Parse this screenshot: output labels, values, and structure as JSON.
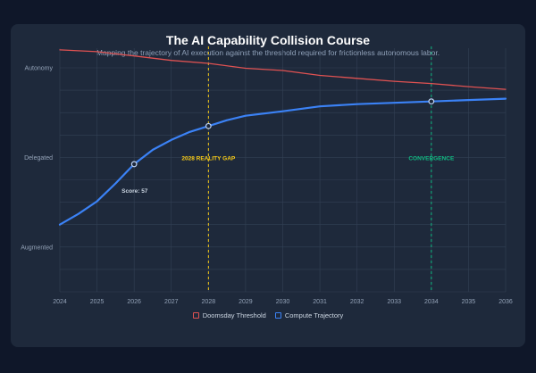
{
  "header": {
    "title": "The AI Capability Collision Course",
    "subtitle": "Mapping the trajectory of AI execution against the threshold required for frictionless autonomous labor."
  },
  "chart_data": {
    "type": "line",
    "title": "The AI Capability Collision Course",
    "subtitle": "Mapping the trajectory of AI execution against the threshold required for frictionless autonomous labor.",
    "xlabel": "",
    "ylabel": "",
    "x": [
      2024,
      2025,
      2026,
      2027,
      2028,
      2029,
      2030,
      2031,
      2032,
      2033,
      2034,
      2035,
      2036
    ],
    "xlim": [
      2024,
      2036
    ],
    "ylim": [
      0,
      100
    ],
    "y_tick_labels": [
      {
        "value": 20,
        "label": "Augmented"
      },
      {
        "value": 60,
        "label": "Delegated"
      },
      {
        "value": 100,
        "label": "Autonomy"
      }
    ],
    "grid": true,
    "series": [
      {
        "name": "Doomsday Threshold",
        "color": "#e05252",
        "points": [
          [
            2024,
            108
          ],
          [
            2025,
            107.2
          ],
          [
            2026,
            105.3
          ],
          [
            2027,
            103.3
          ],
          [
            2028,
            102
          ],
          [
            2029,
            99.8
          ],
          [
            2030,
            98.8
          ],
          [
            2031,
            96.6
          ],
          [
            2032,
            95.3
          ],
          [
            2033,
            94
          ],
          [
            2034,
            93
          ],
          [
            2035,
            91.6
          ],
          [
            2036,
            90.4
          ]
        ]
      },
      {
        "name": "Compute Trajectory",
        "color": "#3b82f6",
        "points": [
          [
            2024,
            30
          ],
          [
            2024.5,
            34.8
          ],
          [
            2025,
            40.4
          ],
          [
            2025.5,
            48.4
          ],
          [
            2026,
            57
          ],
          [
            2026.5,
            63.4
          ],
          [
            2027,
            67.8
          ],
          [
            2027.5,
            71.4
          ],
          [
            2028,
            74
          ],
          [
            2028.5,
            76.6
          ],
          [
            2029,
            78.6
          ],
          [
            2030,
            80.6
          ],
          [
            2031,
            82.8
          ],
          [
            2032,
            83.8
          ],
          [
            2033,
            84.4
          ],
          [
            2034,
            85
          ],
          [
            2035,
            85.6
          ],
          [
            2036,
            86.2
          ]
        ]
      }
    ],
    "markers": [
      {
        "x": 2026,
        "y": 57
      },
      {
        "x": 2028,
        "y": 74
      },
      {
        "x": 2034,
        "y": 85
      }
    ],
    "annotations": [
      {
        "x": 2026,
        "y": 57,
        "text": "Score: 57",
        "color": "#cbd5e1"
      },
      {
        "x": 2028,
        "text": "2028 REALITY GAP",
        "color": "#facc15"
      },
      {
        "x": 2034,
        "text": "CONVERGENCE",
        "color": "#10b981"
      }
    ],
    "legend": {
      "position": "bottom",
      "items": [
        {
          "name": "Doomsday Threshold",
          "color": "#e05252"
        },
        {
          "name": "Compute Trajectory",
          "color": "#3b82f6"
        }
      ]
    }
  }
}
